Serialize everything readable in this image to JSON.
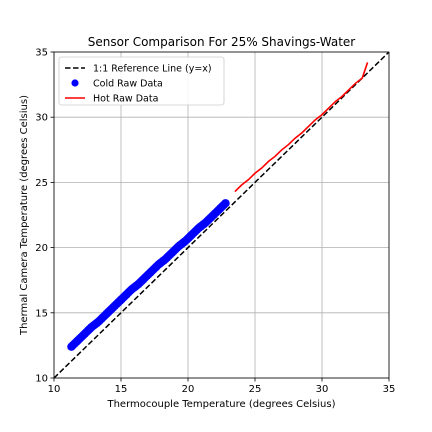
{
  "chart_data": {
    "type": "scatter",
    "title": "Sensor Comparison For 25% Shavings-Water",
    "xlabel": "Thermocouple Temperature (degrees Celsius)",
    "ylabel": "Thermal Camera Temperature (degrees Celsius)",
    "xlim": [
      10,
      35
    ],
    "ylim": [
      10,
      35
    ],
    "xticks": [
      "10",
      "15",
      "20",
      "25",
      "30",
      "35"
    ],
    "yticks": [
      "10",
      "15",
      "20",
      "25",
      "30",
      "35"
    ],
    "grid": true,
    "legend_position": "top-left",
    "series": [
      {
        "name": "1:1 Reference Line (y=x)",
        "kind": "line",
        "style": "dashed",
        "color": "#000000",
        "x": [
          10,
          35
        ],
        "y": [
          10,
          35
        ]
      },
      {
        "name": "Cold Raw Data",
        "kind": "scatter",
        "color": "#0000ff",
        "x": [
          11.3,
          11.8,
          12.3,
          12.8,
          13.3,
          13.8,
          14.3,
          14.8,
          15.3,
          15.8,
          16.3,
          16.8,
          17.3,
          17.8,
          18.3,
          18.8,
          19.3,
          19.8,
          20.3,
          20.8,
          21.3,
          21.8,
          22.3,
          22.8
        ],
        "y": [
          12.4,
          12.9,
          13.4,
          13.9,
          14.3,
          14.8,
          15.3,
          15.8,
          16.3,
          16.8,
          17.2,
          17.7,
          18.2,
          18.7,
          19.1,
          19.6,
          20.1,
          20.5,
          21.0,
          21.5,
          21.9,
          22.4,
          22.9,
          23.4
        ]
      },
      {
        "name": "Hot Raw Data",
        "kind": "line",
        "color": "#ff0000",
        "x": [
          23.5,
          24.0,
          24.5,
          25.0,
          25.5,
          26.0,
          26.5,
          27.0,
          27.5,
          28.0,
          28.5,
          29.0,
          29.5,
          30.0,
          30.5,
          31.0,
          31.5,
          32.0,
          32.5,
          33.0,
          33.4
        ],
        "y": [
          24.3,
          24.8,
          25.2,
          25.7,
          26.1,
          26.6,
          27.0,
          27.5,
          27.9,
          28.4,
          28.8,
          29.3,
          29.8,
          30.2,
          30.7,
          31.2,
          31.6,
          32.1,
          32.6,
          33.0,
          34.2
        ]
      }
    ]
  }
}
